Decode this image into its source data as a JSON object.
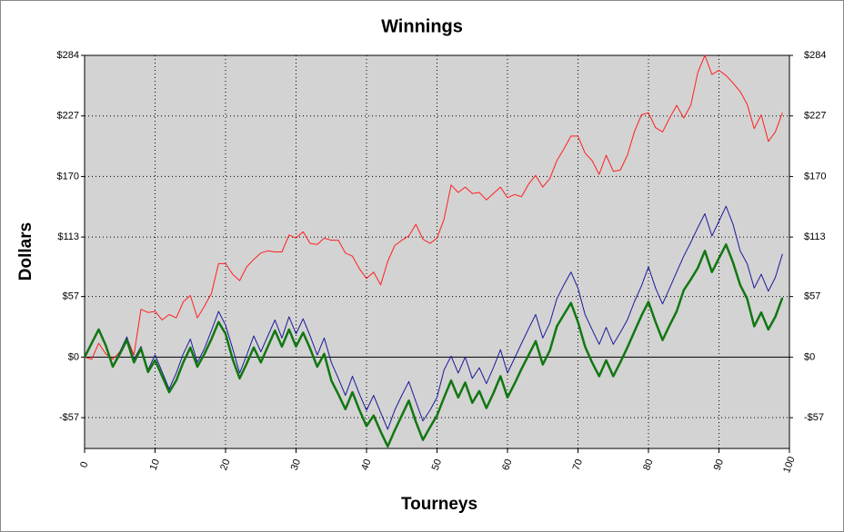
{
  "chart_data": {
    "type": "line",
    "title": "Winnings",
    "xlabel": "Tourneys",
    "ylabel": "Dollars",
    "x": [
      0,
      1,
      2,
      3,
      4,
      5,
      6,
      7,
      8,
      9,
      10,
      11,
      12,
      13,
      14,
      15,
      16,
      17,
      18,
      19,
      20,
      21,
      22,
      23,
      24,
      25,
      26,
      27,
      28,
      29,
      30,
      31,
      32,
      33,
      34,
      35,
      36,
      37,
      38,
      39,
      40,
      41,
      42,
      43,
      44,
      45,
      46,
      47,
      48,
      49,
      50,
      51,
      52,
      53,
      54,
      55,
      56,
      57,
      58,
      59,
      60,
      61,
      62,
      63,
      64,
      65,
      66,
      67,
      68,
      69,
      70,
      71,
      72,
      73,
      74,
      75,
      76,
      77,
      78,
      79,
      80,
      81,
      82,
      83,
      84,
      85,
      86,
      87,
      88,
      89,
      90,
      91,
      92,
      93,
      94,
      95,
      96,
      97,
      98,
      99
    ],
    "series": [
      {
        "color": "#ff2020",
        "width": 1,
        "values": [
          0,
          -2,
          13,
          3,
          -2,
          5,
          18,
          2,
          45,
          42,
          43,
          35,
          40,
          37,
          52,
          58,
          37,
          48,
          60,
          88,
          88,
          78,
          72,
          85,
          92,
          98,
          100,
          99,
          99,
          115,
          112,
          118,
          107,
          106,
          112,
          110,
          110,
          98,
          95,
          83,
          74,
          80,
          68,
          90,
          105,
          110,
          114,
          125,
          111,
          107,
          112,
          130,
          162,
          155,
          160,
          154,
          155,
          148,
          154,
          160,
          150,
          153,
          151,
          163,
          171,
          160,
          168,
          185,
          196,
          208,
          208,
          192,
          185,
          172,
          190,
          175,
          176,
          190,
          212,
          228,
          230,
          216,
          212,
          225,
          237,
          225,
          237,
          268,
          284,
          266,
          270,
          265,
          258,
          250,
          238,
          215,
          228,
          203,
          212,
          230
        ]
      },
      {
        "color": "#1a1a9a",
        "width": 1,
        "values": [
          0,
          12,
          25,
          12,
          -8,
          5,
          19,
          -2,
          10,
          -12,
          2,
          -14,
          -30,
          -15,
          3,
          17,
          -5,
          8,
          25,
          43,
          30,
          8,
          -15,
          2,
          20,
          5,
          20,
          35,
          18,
          38,
          22,
          36,
          20,
          2,
          18,
          -5,
          -20,
          -36,
          -18,
          -35,
          -50,
          -36,
          -52,
          -68,
          -50,
          -36,
          -23,
          -42,
          -60,
          -50,
          -38,
          -12,
          1,
          -15,
          0,
          -20,
          -10,
          -25,
          -10,
          7,
          -15,
          -1,
          13,
          27,
          40,
          18,
          32,
          55,
          68,
          80,
          65,
          40,
          26,
          12,
          28,
          12,
          23,
          35,
          52,
          67,
          85,
          65,
          50,
          65,
          80,
          95,
          108,
          122,
          135,
          114,
          128,
          142,
          125,
          100,
          88,
          65,
          78,
          62,
          75,
          97
        ]
      },
      {
        "color": "#117711",
        "width": 2.5,
        "values": [
          0,
          13,
          26,
          11,
          -9,
          3,
          16,
          -5,
          8,
          -14,
          -3,
          -18,
          -33,
          -22,
          -5,
          9,
          -9,
          3,
          17,
          33,
          22,
          -2,
          -20,
          -6,
          9,
          -5,
          10,
          25,
          10,
          26,
          10,
          23,
          8,
          -9,
          3,
          -22,
          -35,
          -49,
          -33,
          -50,
          -65,
          -55,
          -70,
          -84,
          -69,
          -55,
          -41,
          -61,
          -78,
          -66,
          -55,
          -38,
          -22,
          -38,
          -24,
          -43,
          -32,
          -48,
          -34,
          -18,
          -38,
          -25,
          -11,
          2,
          15,
          -7,
          6,
          29,
          40,
          51,
          33,
          10,
          -5,
          -18,
          -3,
          -18,
          -5,
          9,
          24,
          39,
          52,
          33,
          16,
          30,
          43,
          63,
          73,
          84,
          100,
          80,
          93,
          106,
          89,
          68,
          55,
          29,
          42,
          26,
          38,
          56
        ]
      }
    ],
    "xlim": [
      0,
      100
    ],
    "xticks": [
      0,
      10,
      20,
      30,
      40,
      50,
      60,
      70,
      80,
      90,
      100
    ],
    "ylim": [
      -86,
      284
    ],
    "yticks": [
      {
        "value": -57,
        "label": "-$57"
      },
      {
        "value": 0,
        "label": "$0"
      },
      {
        "value": 57,
        "label": "$57"
      },
      {
        "value": 113,
        "label": "$113"
      },
      {
        "value": 170,
        "label": "$170"
      },
      {
        "value": 227,
        "label": "$227"
      },
      {
        "value": 284,
        "label": "$284"
      }
    ],
    "grid": true
  }
}
